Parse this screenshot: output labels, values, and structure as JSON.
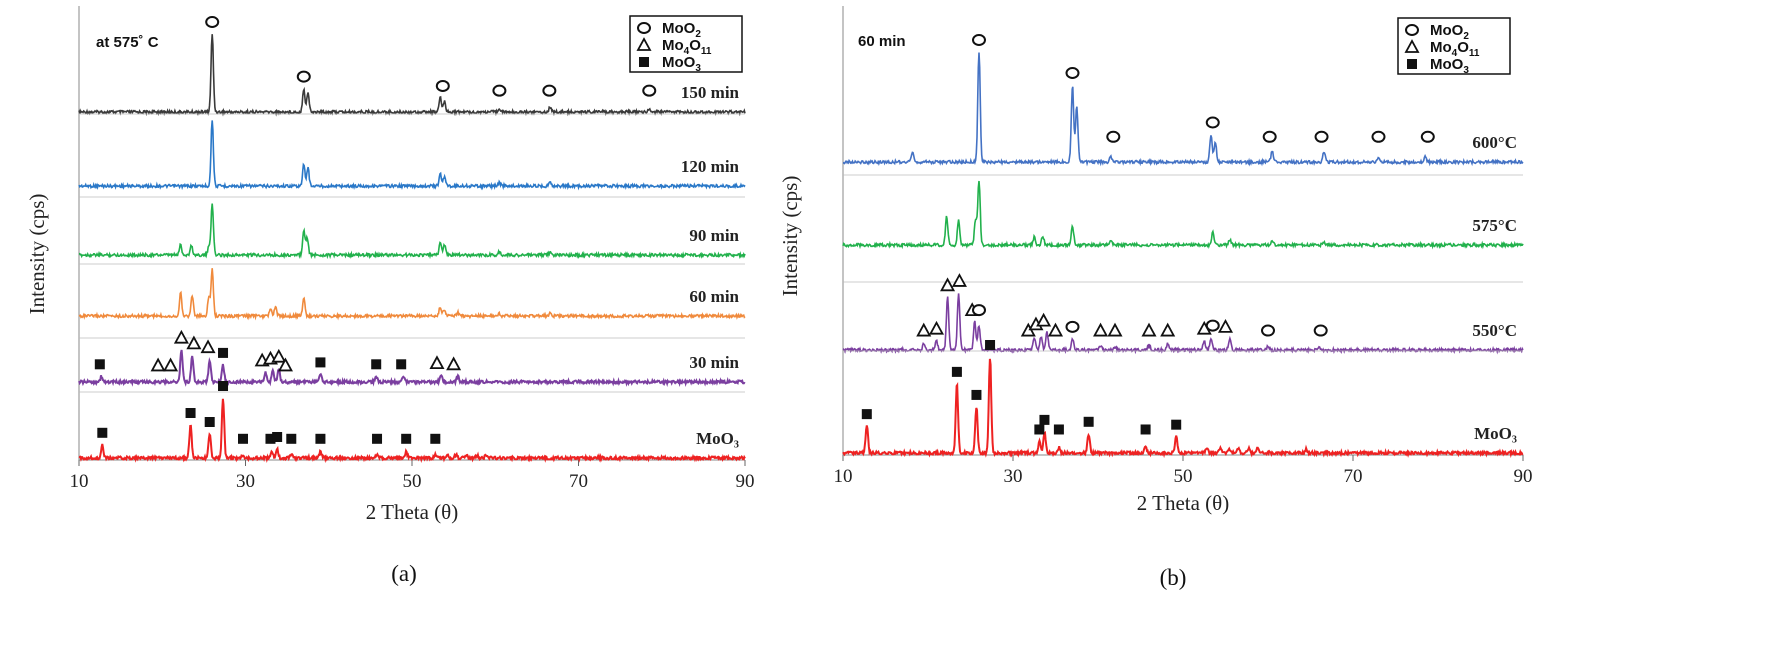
{
  "chart_data": [
    {
      "type": "line",
      "panel": "(a)",
      "condition": "at 575˚ C",
      "xlabel": "2 Theta (θ)",
      "ylabel": "Intensity (cps)",
      "xlim": [
        10,
        90
      ],
      "xticks": [
        10,
        30,
        50,
        70,
        90
      ],
      "legend": {
        "position": "top-right",
        "entries": [
          {
            "marker": "circle",
            "label": "MoO",
            "sub": "2"
          },
          {
            "marker": "triangle",
            "label": "Mo",
            "sub": "4",
            "label2": "O",
            "sub2": "11"
          },
          {
            "marker": "square",
            "label": "MoO",
            "sub": "3"
          }
        ]
      },
      "series": [
        {
          "name": "150 min",
          "color": "#3a3a3a",
          "peaks": [
            [
              26.0,
              1.0
            ],
            [
              37.0,
              0.3
            ],
            [
              37.5,
              0.25
            ],
            [
              53.4,
              0.18
            ],
            [
              53.9,
              0.14
            ],
            [
              60.5,
              0.05
            ],
            [
              66.6,
              0.07
            ],
            [
              78.5,
              0.03
            ]
          ],
          "markers": {
            "circle": [
              26.0,
              37.0,
              53.7,
              60.5,
              66.5,
              78.5
            ]
          }
        },
        {
          "name": "120 min",
          "color": "#2a78c8",
          "peaks": [
            [
              26.0,
              1.0
            ],
            [
              37.0,
              0.32
            ],
            [
              37.5,
              0.28
            ],
            [
              53.4,
              0.18
            ],
            [
              53.9,
              0.15
            ],
            [
              60.5,
              0.05
            ],
            [
              66.6,
              0.07
            ]
          ],
          "markers": {}
        },
        {
          "name": "90 min",
          "color": "#22b14c",
          "peaks": [
            [
              22.2,
              0.2
            ],
            [
              23.5,
              0.18
            ],
            [
              25.6,
              0.15
            ],
            [
              26.0,
              1.0
            ],
            [
              37.0,
              0.45
            ],
            [
              37.4,
              0.35
            ],
            [
              53.4,
              0.25
            ],
            [
              53.9,
              0.2
            ],
            [
              60.5,
              0.06
            ],
            [
              66.6,
              0.06
            ]
          ],
          "markers": {}
        },
        {
          "name": "60 min",
          "color": "#f08a3c",
          "peaks": [
            [
              22.2,
              0.5
            ],
            [
              23.6,
              0.45
            ],
            [
              25.6,
              0.4
            ],
            [
              26.0,
              1.0
            ],
            [
              33.0,
              0.15
            ],
            [
              33.6,
              0.2
            ],
            [
              37.0,
              0.4
            ],
            [
              53.4,
              0.2
            ],
            [
              53.9,
              0.15
            ],
            [
              55.5,
              0.08
            ],
            [
              60.5,
              0.05
            ],
            [
              66.6,
              0.05
            ]
          ],
          "markers": {}
        },
        {
          "name": "30 min",
          "color": "#7b3fa0",
          "peaks": [
            [
              12.7,
              0.15
            ],
            [
              22.3,
              0.85
            ],
            [
              23.6,
              0.7
            ],
            [
              25.7,
              0.6
            ],
            [
              27.3,
              0.45
            ],
            [
              32.4,
              0.25
            ],
            [
              33.3,
              0.3
            ],
            [
              34.0,
              0.35
            ],
            [
              39.0,
              0.2
            ],
            [
              45.7,
              0.15
            ],
            [
              49.0,
              0.15
            ],
            [
              53.5,
              0.18
            ],
            [
              55.5,
              0.15
            ]
          ],
          "markers": {
            "triangle": [
              19.5,
              21.0,
              22.3,
              23.8,
              25.5,
              32.0,
              33.0,
              34.0,
              34.8,
              53.0,
              55.0
            ],
            "square": [
              12.5,
              27.3,
              39.0,
              45.7,
              48.7
            ]
          }
        },
        {
          "name": "MoO₃",
          "color": "#ee2222",
          "peaks": [
            [
              12.8,
              0.22
            ],
            [
              23.4,
              0.55
            ],
            [
              25.7,
              0.4
            ],
            [
              27.3,
              1.0
            ],
            [
              29.7,
              0.05
            ],
            [
              33.2,
              0.1
            ],
            [
              33.8,
              0.15
            ],
            [
              35.5,
              0.05
            ],
            [
              39.0,
              0.1
            ],
            [
              45.8,
              0.05
            ],
            [
              49.3,
              0.1
            ],
            [
              52.8,
              0.06
            ],
            [
              54.3,
              0.05
            ],
            [
              55.3,
              0.06
            ],
            [
              56.5,
              0.05
            ],
            [
              57.8,
              0.05
            ],
            [
              58.9,
              0.06
            ]
          ],
          "markers": {
            "square": [
              12.8,
              23.4,
              25.7,
              27.3,
              29.7,
              33.0,
              33.8,
              35.5,
              39.0,
              45.8,
              49.3,
              52.8
            ]
          }
        }
      ]
    },
    {
      "type": "line",
      "panel": "(b)",
      "condition": "60 min",
      "xlabel": "2 Theta (θ)",
      "ylabel": "Intensity (cps)",
      "xlim": [
        10,
        90
      ],
      "xticks": [
        10,
        30,
        50,
        70,
        90
      ],
      "legend": {
        "position": "top-right",
        "entries": [
          {
            "marker": "circle",
            "label": "MoO",
            "sub": "2"
          },
          {
            "marker": "triangle",
            "label": "Mo",
            "sub": "4",
            "label2": "O",
            "sub2": "11"
          },
          {
            "marker": "square",
            "label": "MoO",
            "sub": "3"
          }
        ]
      },
      "series": [
        {
          "name": "600°C",
          "color": "#4472c4",
          "peaks": [
            [
              18.2,
              0.08
            ],
            [
              26.0,
              1.0
            ],
            [
              37.0,
              0.7
            ],
            [
              37.5,
              0.5
            ],
            [
              41.5,
              0.05
            ],
            [
              53.3,
              0.25
            ],
            [
              53.8,
              0.18
            ],
            [
              60.5,
              0.1
            ],
            [
              66.6,
              0.1
            ],
            [
              73.0,
              0.05
            ],
            [
              78.5,
              0.05
            ]
          ],
          "markers": {
            "circle": [
              26.0,
              37.0,
              41.8,
              53.5,
              60.2,
              66.3,
              73.0,
              78.8
            ]
          }
        },
        {
          "name": "575°C",
          "color": "#22b14c",
          "peaks": [
            [
              22.2,
              0.45
            ],
            [
              23.6,
              0.38
            ],
            [
              25.6,
              0.4
            ],
            [
              26.0,
              1.0
            ],
            [
              32.5,
              0.12
            ],
            [
              33.5,
              0.15
            ],
            [
              37.0,
              0.3
            ],
            [
              41.5,
              0.08
            ],
            [
              53.5,
              0.2
            ],
            [
              55.5,
              0.08
            ],
            [
              60.5,
              0.05
            ],
            [
              66.6,
              0.05
            ]
          ],
          "markers": {}
        },
        {
          "name": "550°C",
          "color": "#7b3fa0",
          "peaks": [
            [
              19.5,
              0.1
            ],
            [
              21.0,
              0.15
            ],
            [
              22.3,
              0.85
            ],
            [
              23.6,
              0.92
            ],
            [
              25.5,
              0.45
            ],
            [
              26.0,
              0.4
            ],
            [
              32.5,
              0.2
            ],
            [
              33.3,
              0.22
            ],
            [
              34.0,
              0.28
            ],
            [
              37.0,
              0.18
            ],
            [
              40.3,
              0.08
            ],
            [
              42.0,
              0.06
            ],
            [
              46.0,
              0.08
            ],
            [
              48.2,
              0.1
            ],
            [
              52.5,
              0.15
            ],
            [
              53.3,
              0.2
            ],
            [
              55.5,
              0.18
            ],
            [
              60.0,
              0.06
            ],
            [
              66.0,
              0.05
            ]
          ],
          "markers": {
            "triangle": [
              19.5,
              21.0,
              22.3,
              23.7,
              25.2,
              31.8,
              32.7,
              33.6,
              35.0,
              40.3,
              42.0,
              46.0,
              48.2,
              52.5,
              55.0
            ],
            "circle": [
              26.0,
              37.0,
              53.5,
              60.0,
              66.2
            ]
          }
        },
        {
          "name": "MoO₃",
          "color": "#ee2222",
          "peaks": [
            [
              12.8,
              0.28
            ],
            [
              23.4,
              0.72
            ],
            [
              25.7,
              0.48
            ],
            [
              27.3,
              1.0
            ],
            [
              33.1,
              0.12
            ],
            [
              33.7,
              0.22
            ],
            [
              35.4,
              0.06
            ],
            [
              38.9,
              0.2
            ],
            [
              45.6,
              0.07
            ],
            [
              49.2,
              0.17
            ],
            [
              52.8,
              0.06
            ],
            [
              54.4,
              0.05
            ],
            [
              55.4,
              0.05
            ],
            [
              56.5,
              0.05
            ],
            [
              57.7,
              0.05
            ],
            [
              58.8,
              0.06
            ],
            [
              64.5,
              0.04
            ]
          ],
          "markers": {
            "square": [
              12.8,
              23.4,
              25.7,
              27.3,
              33.1,
              33.7,
              35.4,
              38.9,
              45.6,
              49.2
            ]
          }
        }
      ]
    }
  ],
  "captions": [
    "(a)",
    "(b)"
  ]
}
